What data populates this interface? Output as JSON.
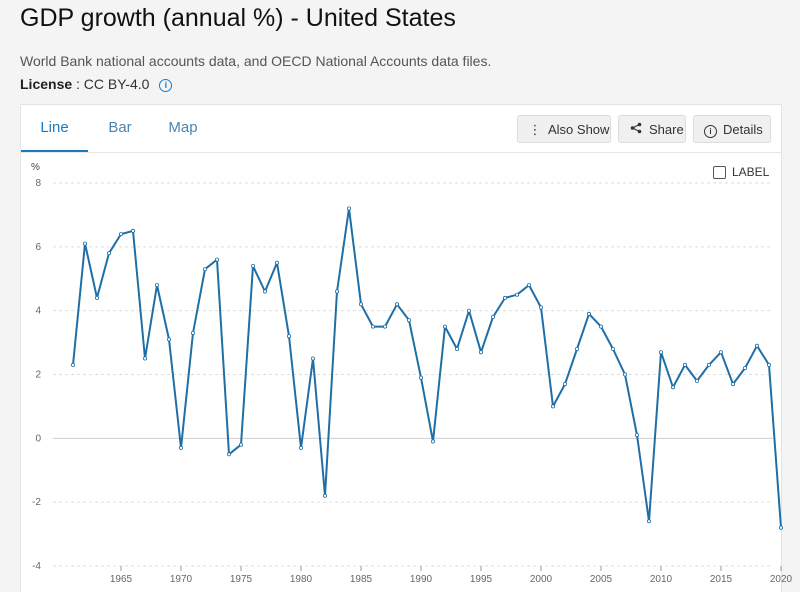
{
  "header": {
    "title": "GDP growth (annual %) - United States",
    "source": "World Bank national accounts data, and OECD National Accounts data files.",
    "license_label": "License",
    "license_value": ": CC BY-4.0"
  },
  "tabs": [
    {
      "label": "Line",
      "active": true
    },
    {
      "label": "Bar",
      "active": false
    },
    {
      "label": "Map",
      "active": false
    }
  ],
  "actions": {
    "also_show": "Also Show",
    "share": "Share",
    "details": "Details"
  },
  "label_toggle": "LABEL",
  "colors": {
    "line": "#1f6fa6",
    "accent": "#1a7bc4"
  },
  "chart_data": {
    "type": "line",
    "ylabel": "%",
    "ylim": [
      -4,
      8
    ],
    "yticks": [
      -4,
      -2,
      0,
      2,
      4,
      6,
      8
    ],
    "xlim": [
      1960,
      2020
    ],
    "xticks": [
      1965,
      1970,
      1975,
      1980,
      1985,
      1990,
      1995,
      2000,
      2005,
      2010,
      2015,
      2020
    ],
    "grid": true,
    "series": [
      {
        "x": [
          1961,
          1962,
          1963,
          1964,
          1965,
          1966,
          1967,
          1968,
          1969,
          1970,
          1971,
          1972,
          1973,
          1974,
          1975,
          1976,
          1977,
          1978,
          1979,
          1980,
          1981,
          1982,
          1983,
          1984,
          1985,
          1986,
          1987,
          1988,
          1989,
          1990,
          1991,
          1992,
          1993,
          1994,
          1995,
          1996,
          1997,
          1998,
          1999,
          2000,
          2001,
          2002,
          2003,
          2004,
          2005,
          2006,
          2007,
          2008,
          2009,
          2010,
          2011,
          2012,
          2013,
          2014,
          2015,
          2016,
          2017,
          2018,
          2019,
          2020
        ],
        "values": [
          2.3,
          6.1,
          4.4,
          5.8,
          6.4,
          6.5,
          2.5,
          4.8,
          3.1,
          -0.3,
          3.3,
          5.3,
          5.6,
          -0.5,
          -0.2,
          5.4,
          4.6,
          5.5,
          3.2,
          -0.3,
          2.5,
          -1.8,
          4.6,
          7.2,
          4.2,
          3.5,
          3.5,
          4.2,
          3.7,
          1.9,
          -0.1,
          3.5,
          2.8,
          4.0,
          2.7,
          3.8,
          4.4,
          4.5,
          4.8,
          4.1,
          1.0,
          1.7,
          2.8,
          3.9,
          3.5,
          2.8,
          2.0,
          0.1,
          -2.6,
          2.7,
          1.6,
          2.3,
          1.8,
          2.3,
          2.7,
          1.7,
          2.2,
          2.9,
          2.3,
          -2.8
        ]
      }
    ]
  }
}
